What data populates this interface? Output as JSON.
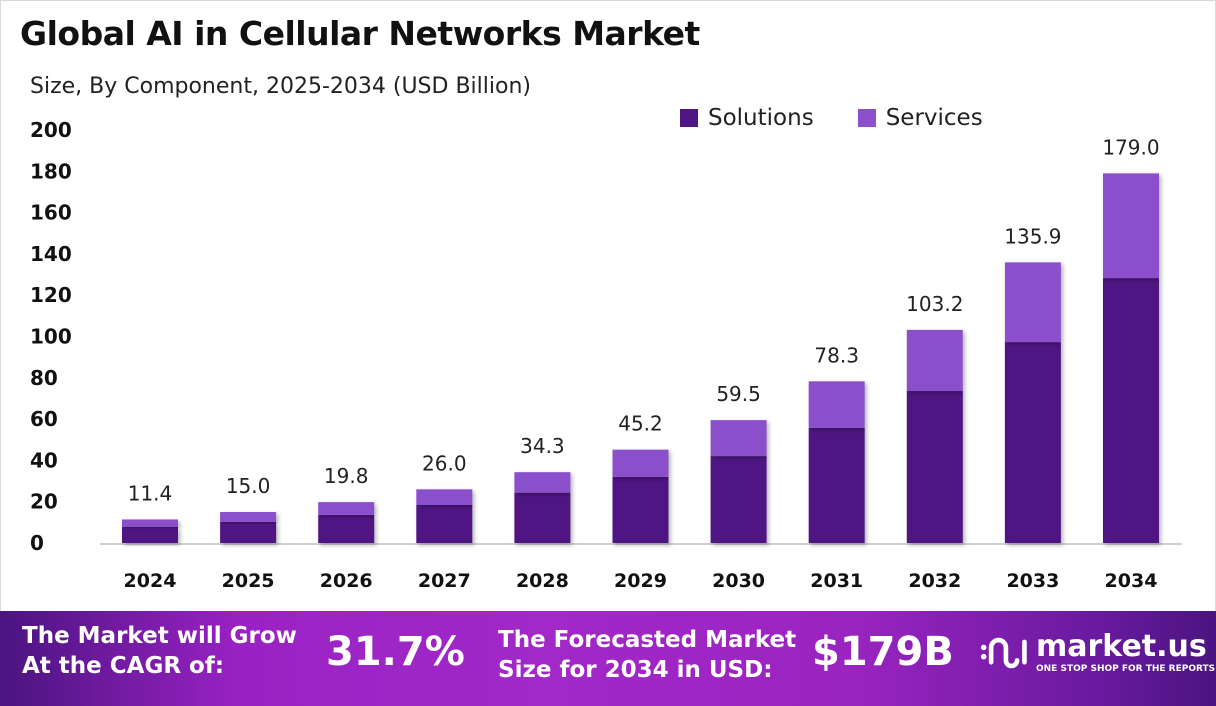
{
  "chart_data": {
    "type": "bar",
    "stacked": true,
    "title": "Global AI in Cellular Networks Market",
    "subtitle": "Size, By Component, 2025-2034 (USD Billion)",
    "categories": [
      "2024",
      "2025",
      "2026",
      "2027",
      "2028",
      "2029",
      "2030",
      "2031",
      "2032",
      "2033",
      "2034"
    ],
    "series": [
      {
        "name": "Solutions",
        "color": "#4f1783",
        "values": [
          7.9,
          10.3,
          13.6,
          18.4,
          24.4,
          32.0,
          42.1,
          55.7,
          73.6,
          97.3,
          128.3
        ]
      },
      {
        "name": "Services",
        "color": "#8c50cc",
        "values": [
          3.5,
          4.7,
          6.2,
          7.6,
          9.9,
          13.2,
          17.4,
          22.6,
          29.6,
          38.6,
          50.7
        ]
      }
    ],
    "totals": [
      "11.4",
      "15.0",
      "19.8",
      "26.0",
      "34.3",
      "45.2",
      "59.5",
      "78.3",
      "103.2",
      "135.9",
      "179.0"
    ],
    "yticks": [
      "0",
      "20",
      "40",
      "60",
      "80",
      "100",
      "120",
      "140",
      "160",
      "180",
      "200"
    ],
    "ylim": [
      0,
      200
    ],
    "grid": false,
    "legend_position": "top-right"
  },
  "footer": {
    "cagr_label_1": "The Market will Grow",
    "cagr_label_2": "At the CAGR of:",
    "cagr_value": "31.7%",
    "forecast_label_1": "The Forecasted Market",
    "forecast_label_2": "Size for 2034 in USD:",
    "forecast_value": "$179B",
    "brand_name": "market.us",
    "brand_tagline": "ONE STOP SHOP FOR THE REPORTS"
  }
}
